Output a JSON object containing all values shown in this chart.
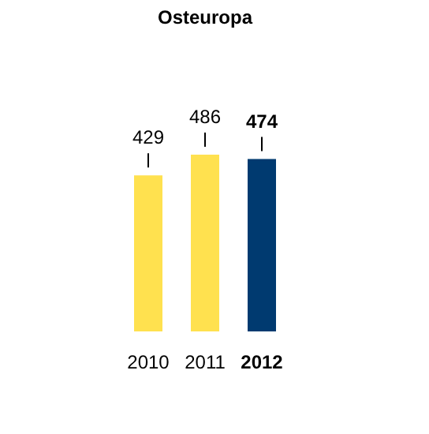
{
  "chart_data": {
    "type": "bar",
    "title": "Osteuropa",
    "categories": [
      "2010",
      "2011",
      "2012"
    ],
    "values": [
      429,
      486,
      474
    ],
    "colors": [
      "#ffe14f",
      "#ffe14f",
      "#003a70"
    ],
    "data_labels": true
  }
}
